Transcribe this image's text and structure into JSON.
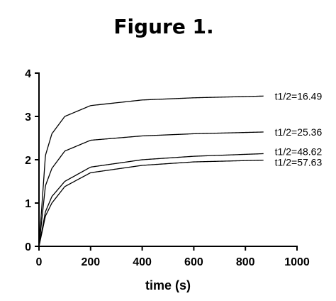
{
  "chart_data": {
    "type": "line",
    "title": "Figure 1.",
    "xlabel": "time (s)",
    "ylabel": "",
    "xlim": [
      0,
      1000
    ],
    "ylim": [
      0,
      4
    ],
    "xticks": [
      0,
      200,
      400,
      600,
      800,
      1000
    ],
    "yticks": [
      0,
      1,
      2,
      3,
      4
    ],
    "grid": false,
    "x_end": 870,
    "series": [
      {
        "name": "t1/2=16.49",
        "values_at": {
          "x": [
            0,
            25,
            50,
            100,
            200,
            400,
            600,
            870
          ],
          "y": [
            0,
            2.1,
            2.6,
            3.0,
            3.25,
            3.38,
            3.43,
            3.47
          ]
        }
      },
      {
        "name": "t1/2=25.36",
        "values_at": {
          "x": [
            0,
            25,
            50,
            100,
            200,
            400,
            600,
            870
          ],
          "y": [
            0,
            1.4,
            1.8,
            2.2,
            2.45,
            2.55,
            2.6,
            2.64
          ]
        }
      },
      {
        "name": "t1/2=48.62",
        "values_at": {
          "x": [
            0,
            25,
            50,
            100,
            200,
            400,
            600,
            870
          ],
          "y": [
            0,
            0.8,
            1.15,
            1.5,
            1.83,
            2.0,
            2.08,
            2.14
          ]
        }
      },
      {
        "name": "t1/2=57.63",
        "values_at": {
          "x": [
            0,
            25,
            50,
            100,
            200,
            400,
            600,
            870
          ],
          "y": [
            0,
            0.7,
            1.0,
            1.38,
            1.7,
            1.87,
            1.95,
            1.99
          ]
        }
      }
    ]
  }
}
